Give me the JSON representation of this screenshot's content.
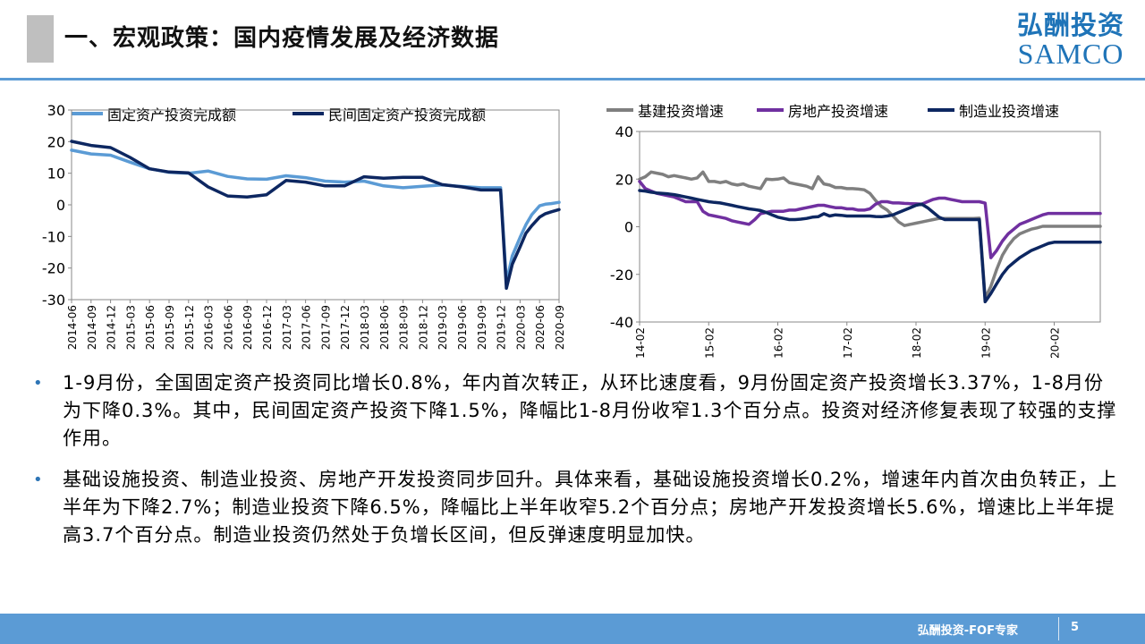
{
  "header": {
    "title": "一、宏观政策：国内疫情发展及经济数据",
    "logo_cn": "弘酬投资",
    "logo_en": "SAMCO"
  },
  "colors": {
    "accent": "#5b9bd5",
    "brand": "#1f74b8",
    "title_block": "#bfbfbf"
  },
  "chart_data": [
    {
      "type": "line",
      "title": "",
      "xlabel": "",
      "ylabel": "",
      "ylim": [
        -30,
        30
      ],
      "yticks": [
        30,
        20,
        10,
        0,
        -10,
        -20,
        -30
      ],
      "grid": false,
      "legend_position": "top",
      "categories": [
        "2014-06",
        "2014-09",
        "2014-12",
        "2015-03",
        "2015-06",
        "2015-09",
        "2015-12",
        "2016-03",
        "2016-06",
        "2016-09",
        "2016-12",
        "2017-03",
        "2017-06",
        "2017-09",
        "2017-12",
        "2018-03",
        "2018-06",
        "2018-09",
        "2018-12",
        "2019-03",
        "2019-06",
        "2019-09",
        "2019-12",
        "2020-03",
        "2020-06",
        "2020-09"
      ],
      "x": [
        0,
        1,
        2,
        3,
        4,
        5,
        6,
        7,
        8,
        9,
        10,
        11,
        12,
        13,
        14,
        15,
        16,
        17,
        18,
        19,
        20,
        21,
        22,
        22.3,
        22.6,
        23,
        23.3,
        23.6,
        24,
        24.3,
        24.6,
        25
      ],
      "series": [
        {
          "name": "固定资产投资完成额",
          "color": "#5b9bd5",
          "values": [
            17.3,
            16.1,
            15.7,
            13.5,
            11.4,
            10.3,
            10.0,
            10.7,
            9.0,
            8.2,
            8.1,
            9.2,
            8.6,
            7.5,
            7.2,
            7.5,
            6.0,
            5.4,
            5.9,
            6.3,
            5.8,
            5.4,
            5.4,
            -24.5,
            -16.1,
            -10.3,
            -6.3,
            -3.1,
            -0.3,
            0.2,
            0.4,
            0.8
          ]
        },
        {
          "name": "民间固定资产投资完成额",
          "color": "#0d2761",
          "values": [
            20.1,
            18.8,
            18.1,
            15.0,
            11.4,
            10.4,
            10.1,
            5.7,
            2.8,
            2.5,
            3.2,
            7.7,
            7.2,
            6.0,
            6.0,
            8.9,
            8.4,
            8.7,
            8.7,
            6.4,
            5.7,
            4.7,
            4.7,
            -26.4,
            -18.8,
            -13.3,
            -9.0,
            -6.6,
            -3.9,
            -2.8,
            -2.2,
            -1.5
          ]
        }
      ]
    },
    {
      "type": "line",
      "title": "",
      "xlabel": "",
      "ylabel": "",
      "ylim": [
        -40,
        40
      ],
      "yticks": [
        40,
        20,
        0,
        -20,
        -40
      ],
      "grid": false,
      "legend_position": "top",
      "categories": [
        "2014-02",
        "2015-02",
        "2016-02",
        "2017-02",
        "2018-02",
        "2019-02",
        "2020-02"
      ],
      "x": [
        0,
        1,
        2,
        3,
        4,
        5,
        6,
        7,
        8,
        9,
        10,
        11,
        12,
        13,
        14,
        15,
        16,
        17,
        18,
        19,
        20,
        21,
        22,
        23,
        24,
        25,
        26,
        27,
        28,
        29,
        30,
        31,
        32,
        33,
        34,
        35,
        36,
        37,
        38,
        39,
        40,
        41,
        42,
        43,
        44,
        45,
        46,
        47,
        48,
        49,
        50,
        51,
        52,
        53,
        54,
        55,
        56,
        57,
        58,
        59,
        60,
        61,
        62,
        63,
        64,
        65,
        66,
        67,
        68,
        69,
        70,
        71,
        72,
        73,
        74,
        75,
        76,
        77,
        78,
        79,
        80
      ],
      "series": [
        {
          "name": "基建投资增速",
          "color": "#7f7f7f",
          "values": [
            20,
            21,
            23,
            22.5,
            22,
            21,
            21.5,
            21,
            20.5,
            20,
            20.5,
            23,
            19,
            19,
            18.5,
            19,
            18,
            17.5,
            18,
            17,
            16.5,
            16,
            20,
            19.8,
            20,
            20.5,
            18.5,
            18,
            17.5,
            17,
            16,
            21,
            18,
            17.5,
            16.5,
            16.5,
            16,
            16,
            15.8,
            15.5,
            14,
            11,
            8.5,
            7,
            4.5,
            2,
            0.5,
            1,
            1.5,
            2,
            2.5,
            3,
            3.5,
            3.5,
            3.5,
            3.5,
            3.5,
            3.5,
            3.5,
            3.6,
            -30,
            -25,
            -18,
            -12,
            -8,
            -5,
            -3,
            -2,
            -1,
            -0.5,
            0.2,
            0.2,
            0.2,
            0.2,
            0.2,
            0.2,
            0.2,
            0.2,
            0.2,
            0.2,
            0.2
          ]
        },
        {
          "name": "房地产投资增速",
          "color": "#7030a0",
          "values": [
            19,
            16,
            15,
            14,
            13.5,
            13,
            12.5,
            11.5,
            10.5,
            10.5,
            10.5,
            6.5,
            5,
            4.5,
            4,
            3.5,
            2.5,
            2,
            1.5,
            1,
            3,
            5.5,
            6,
            6.5,
            6.5,
            6.5,
            7,
            7,
            7.5,
            8,
            8.5,
            9,
            9,
            8.5,
            8,
            8,
            7.5,
            7.5,
            7,
            7,
            7.5,
            9.5,
            10.5,
            10.5,
            10,
            10,
            9.8,
            9.7,
            9.6,
            9.5,
            10.5,
            11.5,
            12,
            12,
            11.5,
            11,
            10.5,
            10.5,
            10.5,
            10.5,
            9.9,
            -13,
            -10,
            -6,
            -3,
            -1,
            1,
            2,
            3,
            4,
            5,
            5.6,
            5.6,
            5.6,
            5.6,
            5.6,
            5.6,
            5.6,
            5.6,
            5.6,
            5.6
          ]
        },
        {
          "name": "制造业投资增速",
          "color": "#0d2761",
          "values": [
            15.2,
            15,
            14.5,
            14.2,
            14,
            13.8,
            13.5,
            13,
            12.5,
            12,
            11.5,
            11,
            10.5,
            10.2,
            10,
            9.5,
            9,
            8.5,
            8,
            7.5,
            7.2,
            6.8,
            6,
            5,
            4,
            3.5,
            3,
            3,
            3.2,
            3.5,
            4,
            4.2,
            5.5,
            4.5,
            5,
            4.8,
            4.5,
            4.5,
            4.5,
            4.5,
            4.5,
            4.3,
            4.2,
            4.5,
            5,
            6,
            7,
            8,
            9,
            9.5,
            8,
            6,
            4,
            3,
            3,
            3,
            3,
            3,
            3,
            3,
            -31.5,
            -28,
            -24,
            -20,
            -17,
            -15,
            -13,
            -11.5,
            -10,
            -9,
            -8,
            -7,
            -6.5,
            -6.5,
            -6.5,
            -6.5,
            -6.5,
            -6.5,
            -6.5,
            -6.5,
            -6.5
          ]
        }
      ]
    }
  ],
  "bullets": [
    "1-9月份，全国固定资产投资同比增长0.8%，年内首次转正，从环比速度看，9月份固定资产投资增长3.37%，1-8月份为下降0.3%。其中，民间固定资产投资下降1.5%，降幅比1-8月份收窄1.3个百分点。投资对经济修复表现了较强的支撑作用。",
    "基础设施投资、制造业投资、房地产开发投资同步回升。具体来看，基础设施投资增长0.2%，增速年内首次由负转正，上半年为下降2.7%；制造业投资下降6.5%，降幅比上半年收窄5.2个百分点；房地产开发投资增长5.6%，增速比上半年提高3.7个百分点。制造业投资仍然处于负增长区间，但反弹速度明显加快。"
  ],
  "footer": {
    "text": "弘酬投资-FOF专家",
    "page": "5"
  }
}
